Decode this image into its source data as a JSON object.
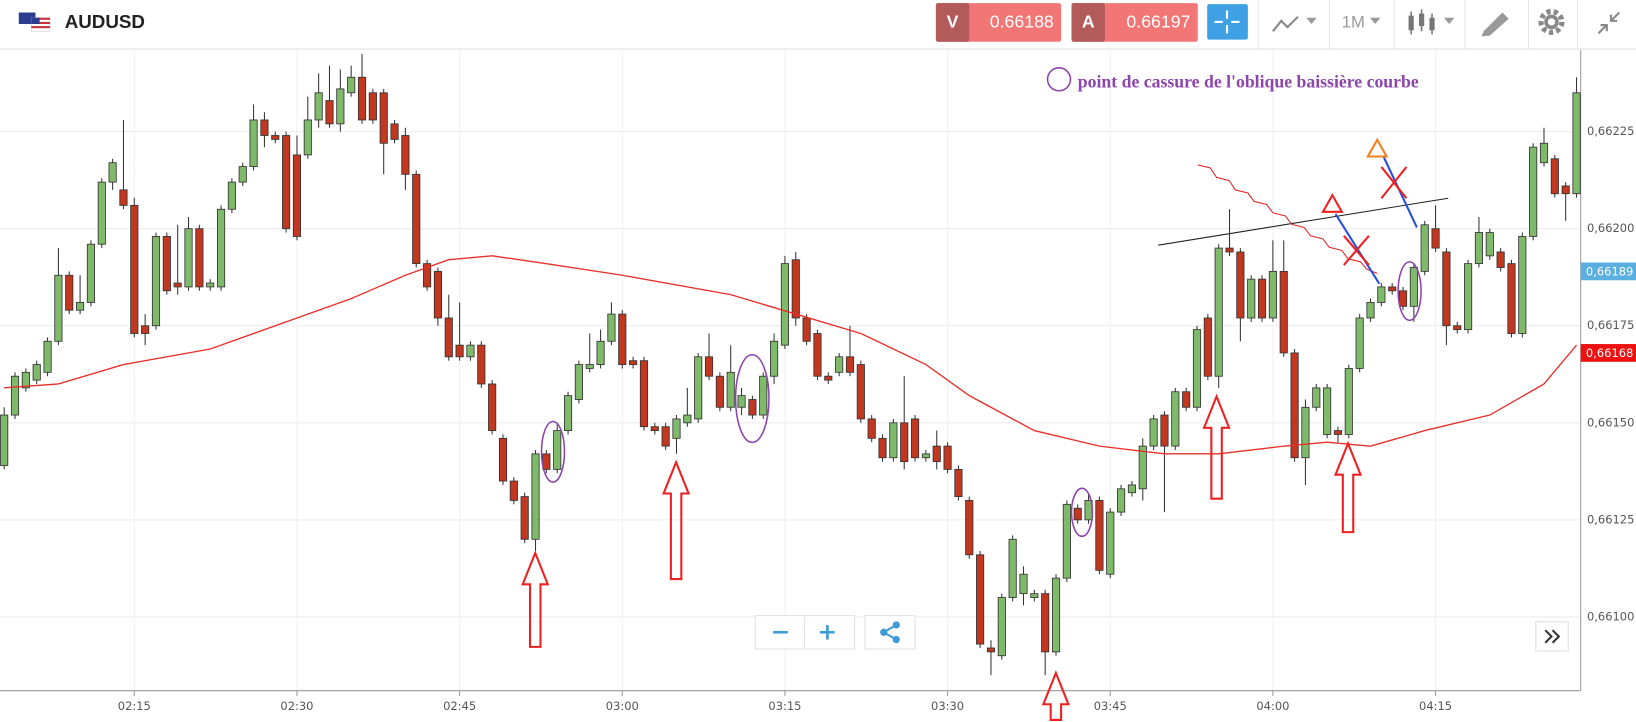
{
  "header": {
    "symbol": "AUDUSD",
    "sell_label": "V",
    "sell_price": 0.66188,
    "buy_label": "A",
    "buy_price": 0.66197,
    "timeframe": "1M"
  },
  "chart_data": {
    "type": "candlestick",
    "up_color": "#7fb96a",
    "down_color": "#c1371f",
    "x": [
      "02:03",
      "02:04",
      "02:05",
      "02:06",
      "02:07",
      "02:08",
      "02:09",
      "02:10",
      "02:11",
      "02:12",
      "02:13",
      "02:14",
      "02:15",
      "02:16",
      "02:17",
      "02:18",
      "02:19",
      "02:20",
      "02:21",
      "02:22",
      "02:23",
      "02:24",
      "02:25",
      "02:26",
      "02:27",
      "02:28",
      "02:29",
      "02:30",
      "02:31",
      "02:32",
      "02:33",
      "02:34",
      "02:35",
      "02:36",
      "02:37",
      "02:38",
      "02:39",
      "02:40",
      "02:41",
      "02:42",
      "02:43",
      "02:44",
      "02:45",
      "02:46",
      "02:47",
      "02:48",
      "02:49",
      "02:50",
      "02:51",
      "02:52",
      "02:53",
      "02:54",
      "02:55",
      "02:56",
      "02:57",
      "02:58",
      "02:59",
      "03:00",
      "03:01",
      "03:02",
      "03:03",
      "03:04",
      "03:05",
      "03:06",
      "03:07",
      "03:08",
      "03:09",
      "03:10",
      "03:11",
      "03:12",
      "03:13",
      "03:14",
      "03:15",
      "03:16",
      "03:17",
      "03:18",
      "03:19",
      "03:20",
      "03:21",
      "03:22",
      "03:23",
      "03:24",
      "03:25",
      "03:26",
      "03:27",
      "03:28",
      "03:29",
      "03:30",
      "03:31",
      "03:32",
      "03:33",
      "03:34",
      "03:35",
      "03:36",
      "03:37",
      "03:38",
      "03:39",
      "03:40",
      "03:41",
      "03:42",
      "03:43",
      "03:44",
      "03:45",
      "03:46",
      "03:47",
      "03:48",
      "03:49",
      "03:50",
      "03:51",
      "03:52",
      "03:53",
      "03:54",
      "03:55",
      "03:56",
      "03:57",
      "03:58",
      "03:59",
      "04:00",
      "04:01",
      "04:02",
      "04:03",
      "04:04",
      "04:05",
      "04:06",
      "04:07",
      "04:08",
      "04:09",
      "04:10",
      "04:11",
      "04:12",
      "04:13",
      "04:14",
      "04:15",
      "04:16",
      "04:17",
      "04:18",
      "04:19",
      "04:20",
      "04:21",
      "04:22",
      "04:23",
      "04:24",
      "04:25",
      "04:26",
      "04:27",
      "04:28"
    ],
    "open": [
      0.66139,
      0.66152,
      0.66159,
      0.66161,
      0.66163,
      0.66171,
      0.66188,
      0.66179,
      0.66181,
      0.66196,
      0.66212,
      0.6621,
      0.66206,
      0.66175,
      0.66175,
      0.66198,
      0.66186,
      0.66185,
      0.662,
      0.66185,
      0.66185,
      0.66205,
      0.66212,
      0.66216,
      0.66228,
      0.66224,
      0.66224,
      0.66219,
      0.66219,
      0.66228,
      0.66233,
      0.66227,
      0.66235,
      0.66239,
      0.66235,
      0.66235,
      0.66227,
      0.66224,
      0.66214,
      0.66191,
      0.66189,
      0.66177,
      0.6617,
      0.66167,
      0.6617,
      0.6616,
      0.66146,
      0.66135,
      0.66131,
      0.6612,
      0.66142,
      0.66138,
      0.66148,
      0.66156,
      0.66164,
      0.66165,
      0.66171,
      0.66178,
      0.66166,
      0.66166,
      0.66149,
      0.66149,
      0.66146,
      0.6615,
      0.66151,
      0.66167,
      0.66162,
      0.66154,
      0.66154,
      0.66156,
      0.66152,
      0.66162,
      0.6617,
      0.66192,
      0.66177,
      0.66173,
      0.66162,
      0.66163,
      0.66167,
      0.66165,
      0.66151,
      0.66146,
      0.66141,
      0.6615,
      0.66151,
      0.66141,
      0.66144,
      0.66144,
      0.66138,
      0.6613,
      0.66116,
      0.66092,
      0.6609,
      0.66105,
      0.66106,
      0.66105,
      0.66106,
      0.66091,
      0.6611,
      0.66128,
      0.66125,
      0.6613,
      0.66111,
      0.66127,
      0.66132,
      0.66133,
      0.66144,
      0.66152,
      0.66144,
      0.66158,
      0.66154,
      0.66177,
      0.66162,
      0.66195,
      0.66194,
      0.66177,
      0.66187,
      0.66177,
      0.66189,
      0.66168,
      0.66141,
      0.66154,
      0.66147,
      0.66148,
      0.66147,
      0.66164,
      0.66177,
      0.66181,
      0.66185,
      0.66184,
      0.6618,
      0.66189,
      0.662,
      0.66194,
      0.66175,
      0.66174,
      0.66191,
      0.66193,
      0.66194,
      0.66191,
      0.66173,
      0.66198,
      0.66217,
      0.66218,
      0.66211,
      0.66209
    ],
    "high": [
      0.66154,
      0.66163,
      0.66164,
      0.66166,
      0.66172,
      0.66195,
      0.66189,
      0.66188,
      0.66197,
      0.66213,
      0.66218,
      0.66228,
      0.66208,
      0.66178,
      0.66199,
      0.66199,
      0.66201,
      0.66203,
      0.66201,
      0.66187,
      0.66206,
      0.66213,
      0.66217,
      0.66232,
      0.6623,
      0.66225,
      0.66225,
      0.66224,
      0.66234,
      0.6624,
      0.66242,
      0.66241,
      0.66242,
      0.66245,
      0.66236,
      0.66236,
      0.66228,
      0.66226,
      0.66215,
      0.66192,
      0.6619,
      0.66183,
      0.66181,
      0.66171,
      0.66171,
      0.66161,
      0.66147,
      0.66136,
      0.66132,
      0.66143,
      0.66143,
      0.6615,
      0.66158,
      0.66166,
      0.66173,
      0.66174,
      0.66181,
      0.66179,
      0.66167,
      0.66167,
      0.6615,
      0.6615,
      0.66152,
      0.66159,
      0.66168,
      0.66173,
      0.66163,
      0.6617,
      0.66159,
      0.66157,
      0.66163,
      0.66173,
      0.66193,
      0.66194,
      0.66178,
      0.66174,
      0.66163,
      0.66168,
      0.66175,
      0.66166,
      0.66152,
      0.66147,
      0.66151,
      0.66162,
      0.66152,
      0.66143,
      0.66148,
      0.66145,
      0.66139,
      0.66131,
      0.66117,
      0.66094,
      0.66106,
      0.66121,
      0.66113,
      0.66107,
      0.66107,
      0.66111,
      0.6613,
      0.66129,
      0.66132,
      0.66131,
      0.66128,
      0.66134,
      0.66135,
      0.66146,
      0.66152,
      0.66153,
      0.66159,
      0.66159,
      0.66175,
      0.66178,
      0.66196,
      0.66205,
      0.66195,
      0.66188,
      0.66188,
      0.66197,
      0.66197,
      0.66169,
      0.66156,
      0.6616,
      0.6616,
      0.66149,
      0.66165,
      0.66178,
      0.66182,
      0.66186,
      0.66186,
      0.66185,
      0.66191,
      0.66202,
      0.66206,
      0.66195,
      0.66176,
      0.66192,
      0.66203,
      0.662,
      0.66195,
      0.66192,
      0.66199,
      0.66222,
      0.66226,
      0.66219,
      0.66212,
      0.66239
    ],
    "low": [
      0.66138,
      0.66151,
      0.66158,
      0.6616,
      0.66162,
      0.6617,
      0.66178,
      0.66178,
      0.6618,
      0.66195,
      0.6621,
      0.66205,
      0.66172,
      0.6617,
      0.66174,
      0.66183,
      0.66183,
      0.66184,
      0.66184,
      0.66184,
      0.66184,
      0.66204,
      0.66211,
      0.66215,
      0.66221,
      0.66222,
      0.66199,
      0.66197,
      0.66218,
      0.66226,
      0.66226,
      0.66225,
      0.66234,
      0.66227,
      0.66227,
      0.66214,
      0.66222,
      0.6621,
      0.6619,
      0.66184,
      0.66175,
      0.66166,
      0.66166,
      0.66166,
      0.66159,
      0.66147,
      0.66134,
      0.66129,
      0.66119,
      0.66117,
      0.66137,
      0.66137,
      0.66147,
      0.66155,
      0.66163,
      0.66164,
      0.6617,
      0.66164,
      0.66164,
      0.66148,
      0.66147,
      0.66143,
      0.66142,
      0.66149,
      0.6615,
      0.66161,
      0.66153,
      0.66153,
      0.66152,
      0.66151,
      0.66151,
      0.6616,
      0.66169,
      0.66175,
      0.6617,
      0.66161,
      0.6616,
      0.66162,
      0.66162,
      0.6615,
      0.66145,
      0.6614,
      0.6614,
      0.66138,
      0.6614,
      0.6614,
      0.66138,
      0.66137,
      0.6613,
      0.66115,
      0.66092,
      0.66085,
      0.66089,
      0.66104,
      0.66103,
      0.66104,
      0.66085,
      0.6609,
      0.66109,
      0.66124,
      0.66124,
      0.66111,
      0.6611,
      0.66126,
      0.66131,
      0.6613,
      0.66143,
      0.66127,
      0.66143,
      0.66153,
      0.66153,
      0.66161,
      0.66159,
      0.66193,
      0.66171,
      0.66176,
      0.66176,
      0.66176,
      0.66167,
      0.6614,
      0.66134,
      0.66153,
      0.66146,
      0.66145,
      0.66146,
      0.66163,
      0.66176,
      0.6618,
      0.66183,
      0.66179,
      0.66176,
      0.66188,
      0.66194,
      0.6617,
      0.66173,
      0.66173,
      0.6619,
      0.66192,
      0.66189,
      0.66172,
      0.66172,
      0.66197,
      0.66216,
      0.66208,
      0.66202,
      0.66208
    ],
    "close": [
      0.66152,
      0.66162,
      0.66163,
      0.66165,
      0.66171,
      0.66188,
      0.66179,
      0.66181,
      0.66196,
      0.66212,
      0.66217,
      0.66206,
      0.66173,
      0.66173,
      0.66198,
      0.66184,
      0.66185,
      0.662,
      0.66185,
      0.66186,
      0.66205,
      0.66212,
      0.66216,
      0.66228,
      0.66224,
      0.66223,
      0.662,
      0.66198,
      0.66228,
      0.66235,
      0.66227,
      0.66236,
      0.66239,
      0.66228,
      0.66228,
      0.66222,
      0.66223,
      0.66214,
      0.66191,
      0.66185,
      0.66177,
      0.66167,
      0.66167,
      0.6617,
      0.6616,
      0.66148,
      0.66135,
      0.6613,
      0.6612,
      0.66142,
      0.66138,
      0.66148,
      0.66157,
      0.66165,
      0.66165,
      0.66171,
      0.66178,
      0.66165,
      0.66165,
      0.66149,
      0.66148,
      0.66144,
      0.66151,
      0.66152,
      0.66167,
      0.66162,
      0.66154,
      0.66163,
      0.66157,
      0.66152,
      0.66162,
      0.66171,
      0.66191,
      0.66177,
      0.66171,
      0.66162,
      0.66161,
      0.66167,
      0.66163,
      0.66151,
      0.66146,
      0.66141,
      0.6615,
      0.6614,
      0.66141,
      0.66142,
      0.6614,
      0.66138,
      0.66131,
      0.66116,
      0.66093,
      0.66091,
      0.66105,
      0.6612,
      0.66111,
      0.66106,
      0.66091,
      0.6611,
      0.66129,
      0.66125,
      0.6613,
      0.66112,
      0.66127,
      0.66133,
      0.66134,
      0.66144,
      0.66151,
      0.66144,
      0.66158,
      0.66154,
      0.66174,
      0.66162,
      0.66195,
      0.66194,
      0.66177,
      0.66187,
      0.66177,
      0.66189,
      0.66168,
      0.66141,
      0.66154,
      0.66159,
      0.66159,
      0.66147,
      0.66164,
      0.66177,
      0.66181,
      0.66185,
      0.66184,
      0.6618,
      0.6619,
      0.66201,
      0.66195,
      0.66175,
      0.66174,
      0.66191,
      0.66199,
      0.66199,
      0.6619,
      0.66173,
      0.66198,
      0.66221,
      0.66222,
      0.66209,
      0.66209,
      0.66235
    ],
    "moving_average": {
      "color": "#e8302a",
      "x": [
        "02:03",
        "02:08",
        "02:14",
        "02:22",
        "02:30",
        "02:35",
        "02:40",
        "02:44",
        "02:48",
        "02:53",
        "03:00",
        "03:10",
        "03:16",
        "03:22",
        "03:28",
        "03:32",
        "03:38",
        "03:44",
        "03:50",
        "03:55",
        "04:01",
        "04:05",
        "04:09",
        "04:14",
        "04:20",
        "04:25",
        "04:28"
      ],
      "values": [
        0.66159,
        0.6616,
        0.66165,
        0.66169,
        0.66177,
        0.66182,
        0.66188,
        0.66192,
        0.66193,
        0.66191,
        0.66188,
        0.66183,
        0.66178,
        0.66173,
        0.66165,
        0.66157,
        0.66148,
        0.66144,
        0.66142,
        0.66142,
        0.66144,
        0.66145,
        0.66144,
        0.66148,
        0.66152,
        0.6616,
        0.6617
      ]
    },
    "xlim": [
      "02:03",
      "04:28"
    ],
    "xticks": [
      "02:15",
      "02:30",
      "02:45",
      "03:00",
      "03:15",
      "03:30",
      "03:45",
      "04:00",
      "04:15"
    ],
    "ylim": [
      0.66081,
      0.66246
    ],
    "yticks": [
      {
        "value": 0.661,
        "label": "0,66100"
      },
      {
        "value": 0.66125,
        "label": "0,66125"
      },
      {
        "value": 0.6615,
        "label": "0,66150"
      },
      {
        "value": 0.66175,
        "label": "0,66175"
      },
      {
        "value": 0.662,
        "label": "0,66200"
      },
      {
        "value": 0.66225,
        "label": "0,66225"
      }
    ],
    "grid": true,
    "price_markers": [
      {
        "value": 0.66189,
        "label": "0,66189",
        "color": "#5aaee0"
      },
      {
        "value": 0.66168,
        "label": "0,66168",
        "color": "#ee1111"
      }
    ],
    "annotation": {
      "text": "point de cassure de l'oblique baissière courbe",
      "color": "#8e44ad"
    }
  }
}
